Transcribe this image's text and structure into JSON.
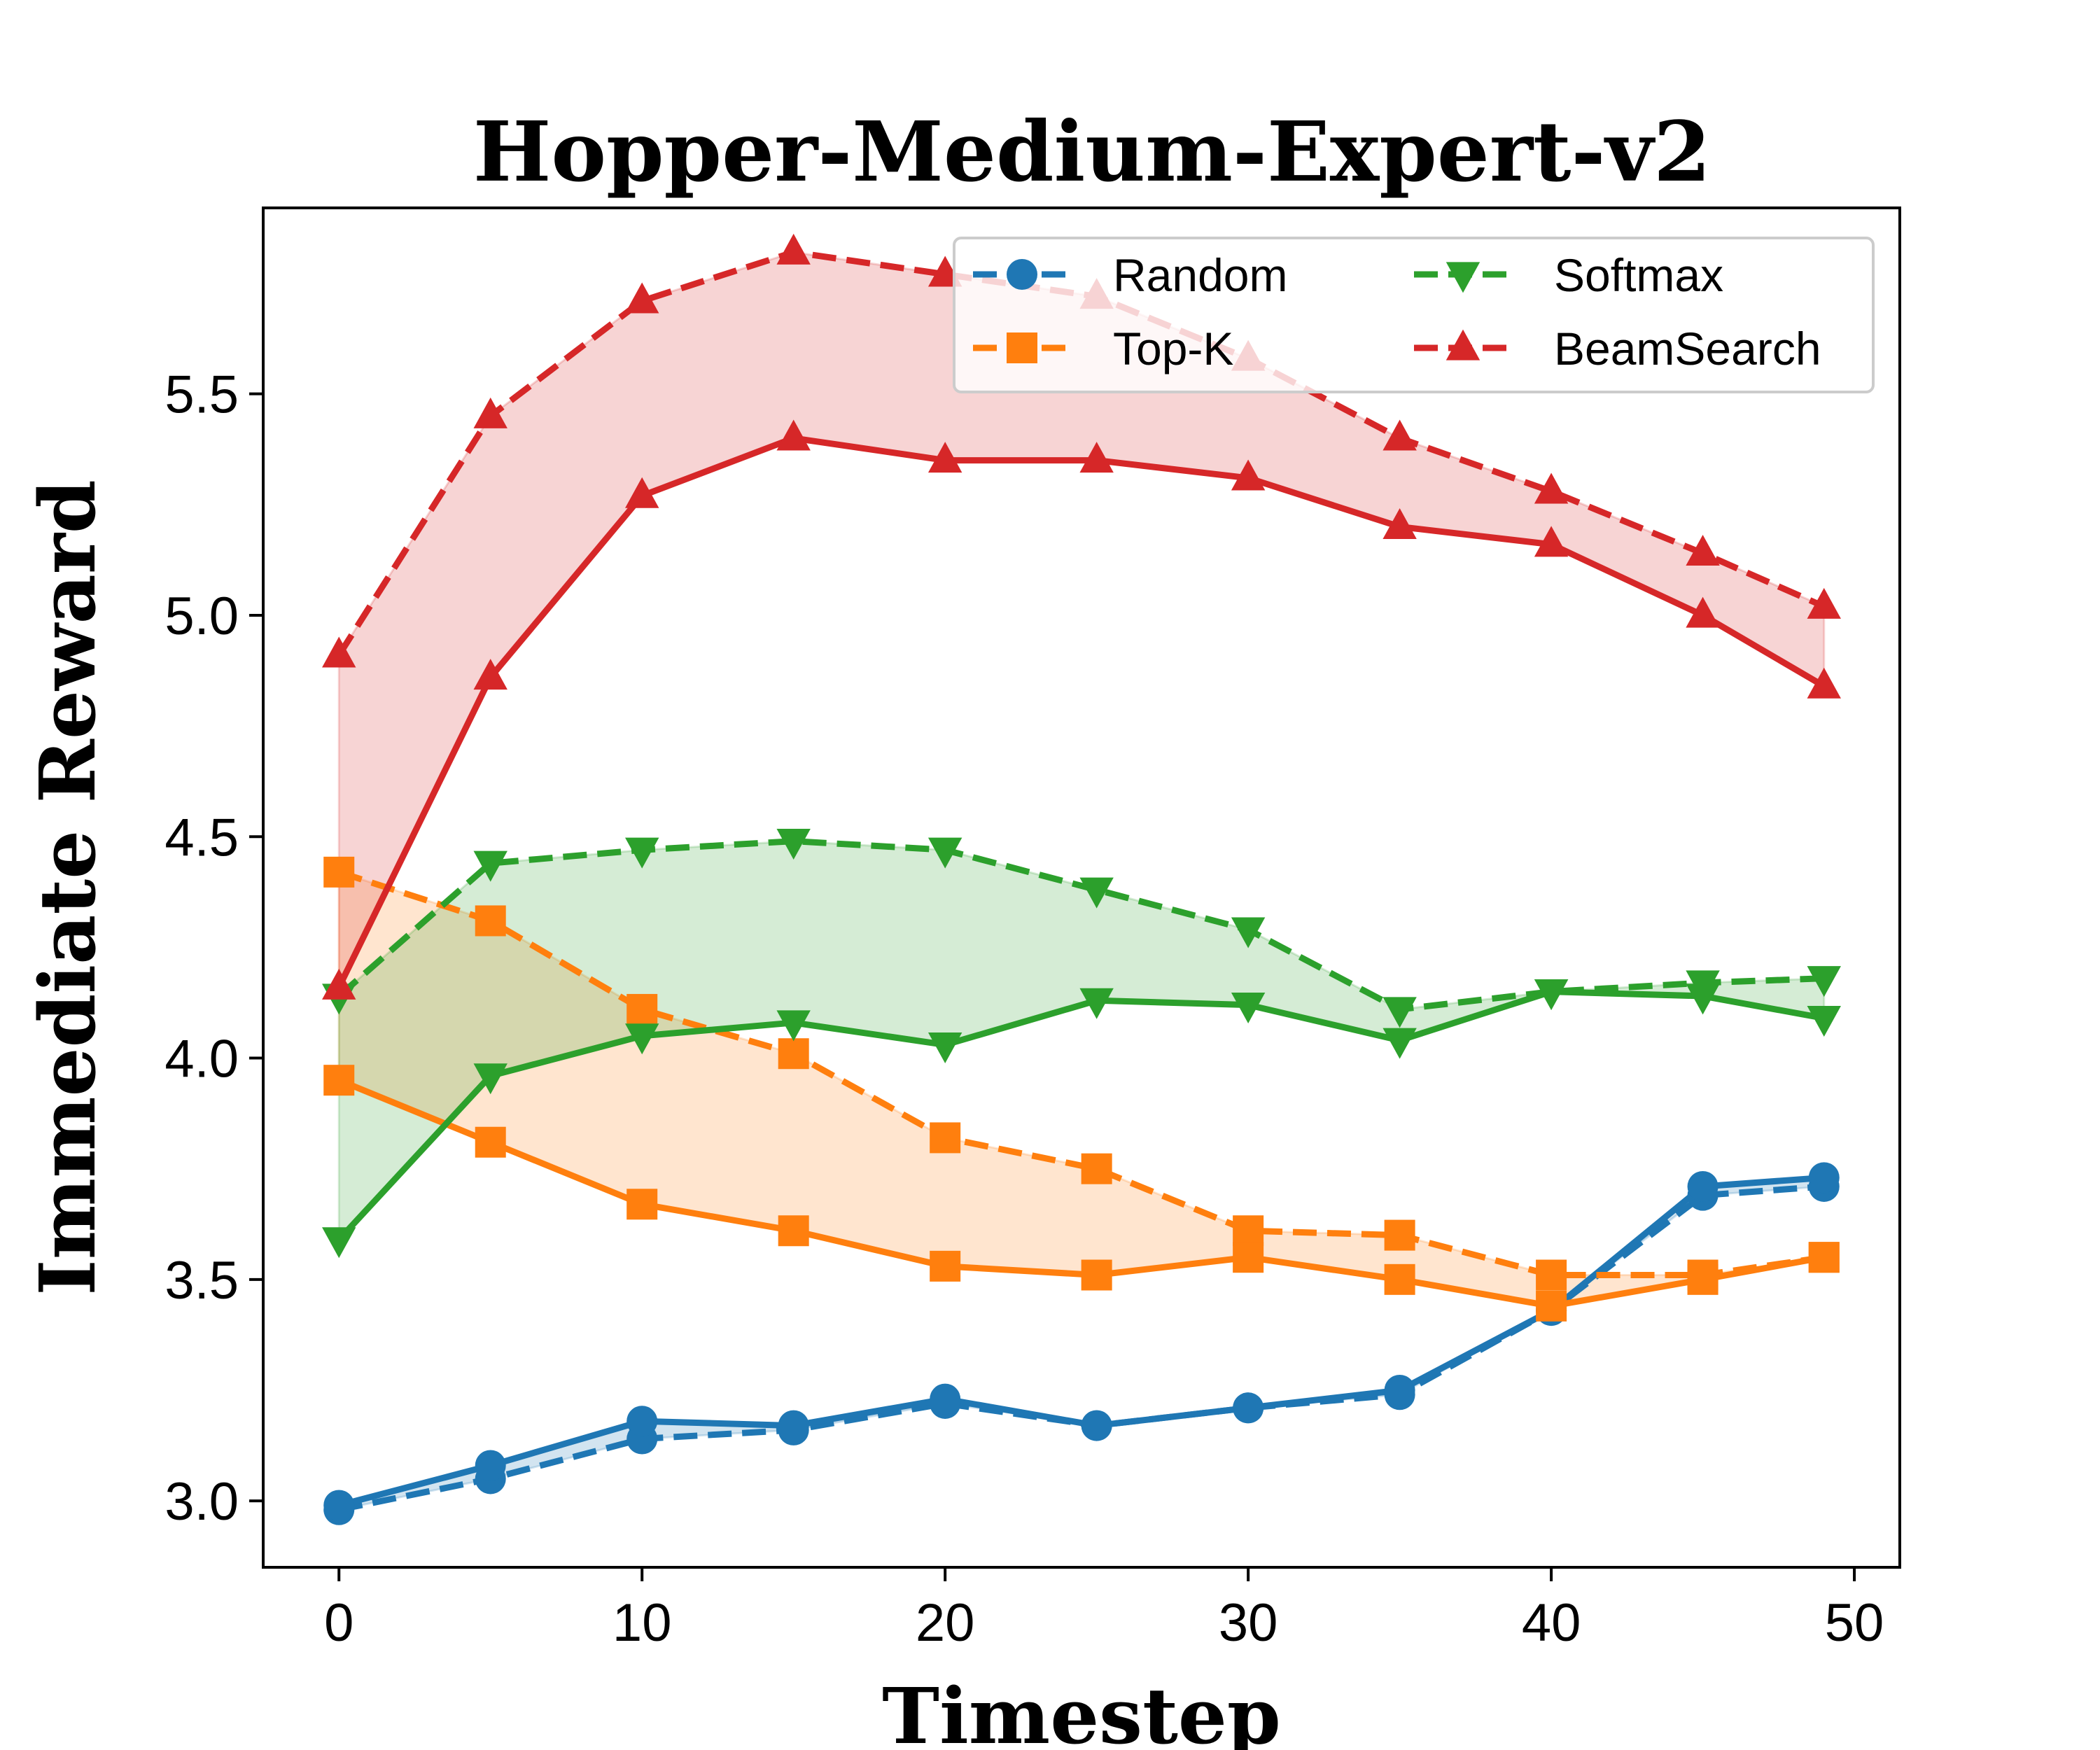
{
  "chart_data": {
    "type": "line",
    "title": "Hopper-Medium-Expert-v2",
    "xlabel": "Timestep",
    "ylabel": "Immediate Reward",
    "xlim": [
      -2.5,
      51.5
    ],
    "ylim": [
      2.85,
      5.92
    ],
    "xticks": [
      0,
      10,
      20,
      30,
      40,
      50
    ],
    "xtick_labels": [
      "0",
      "10",
      "20",
      "30",
      "40",
      "50"
    ],
    "yticks": [
      3.0,
      3.5,
      4.0,
      4.5,
      5.0,
      5.5
    ],
    "ytick_labels": [
      "3.0",
      "3.5",
      "4.0",
      "4.5",
      "5.0",
      "5.5"
    ],
    "grid": false,
    "legend_position": "top-right",
    "legend_columns": 2,
    "x": [
      0,
      5,
      10,
      15,
      20,
      25,
      30,
      35,
      40,
      45,
      49
    ],
    "series": [
      {
        "name": "Random",
        "color": "#1f77b4",
        "marker": "circle",
        "solid": [
          2.99,
          3.08,
          3.18,
          3.17,
          3.23,
          3.17,
          3.21,
          3.25,
          3.43,
          3.71,
          3.73
        ],
        "dashed": [
          2.98,
          3.05,
          3.14,
          3.16,
          3.22,
          3.17,
          3.21,
          3.24,
          3.43,
          3.69,
          3.71
        ]
      },
      {
        "name": "Top-K",
        "color": "#ff7f0e",
        "marker": "square",
        "solid": [
          3.95,
          3.81,
          3.67,
          3.61,
          3.53,
          3.51,
          3.55,
          3.5,
          3.44,
          3.5,
          3.55
        ],
        "dashed": [
          4.42,
          4.31,
          4.11,
          4.01,
          3.82,
          3.75,
          3.61,
          3.6,
          3.51,
          3.51,
          3.55
        ]
      },
      {
        "name": "Softmax",
        "color": "#2ca02c",
        "marker": "triangle-down",
        "solid": [
          3.59,
          3.96,
          4.05,
          4.08,
          4.03,
          4.13,
          4.12,
          4.04,
          4.15,
          4.14,
          4.09
        ],
        "dashed": [
          4.14,
          4.44,
          4.47,
          4.49,
          4.47,
          4.38,
          4.29,
          4.11,
          4.15,
          4.17,
          4.18
        ]
      },
      {
        "name": "BeamSearch",
        "color": "#d62728",
        "marker": "triangle-up",
        "solid": [
          4.16,
          4.86,
          5.27,
          5.4,
          5.35,
          5.35,
          5.31,
          5.2,
          5.16,
          5.0,
          4.84
        ],
        "dashed": [
          4.91,
          5.45,
          5.71,
          5.82,
          5.77,
          5.72,
          5.58,
          5.4,
          5.28,
          5.14,
          5.02
        ]
      }
    ]
  }
}
